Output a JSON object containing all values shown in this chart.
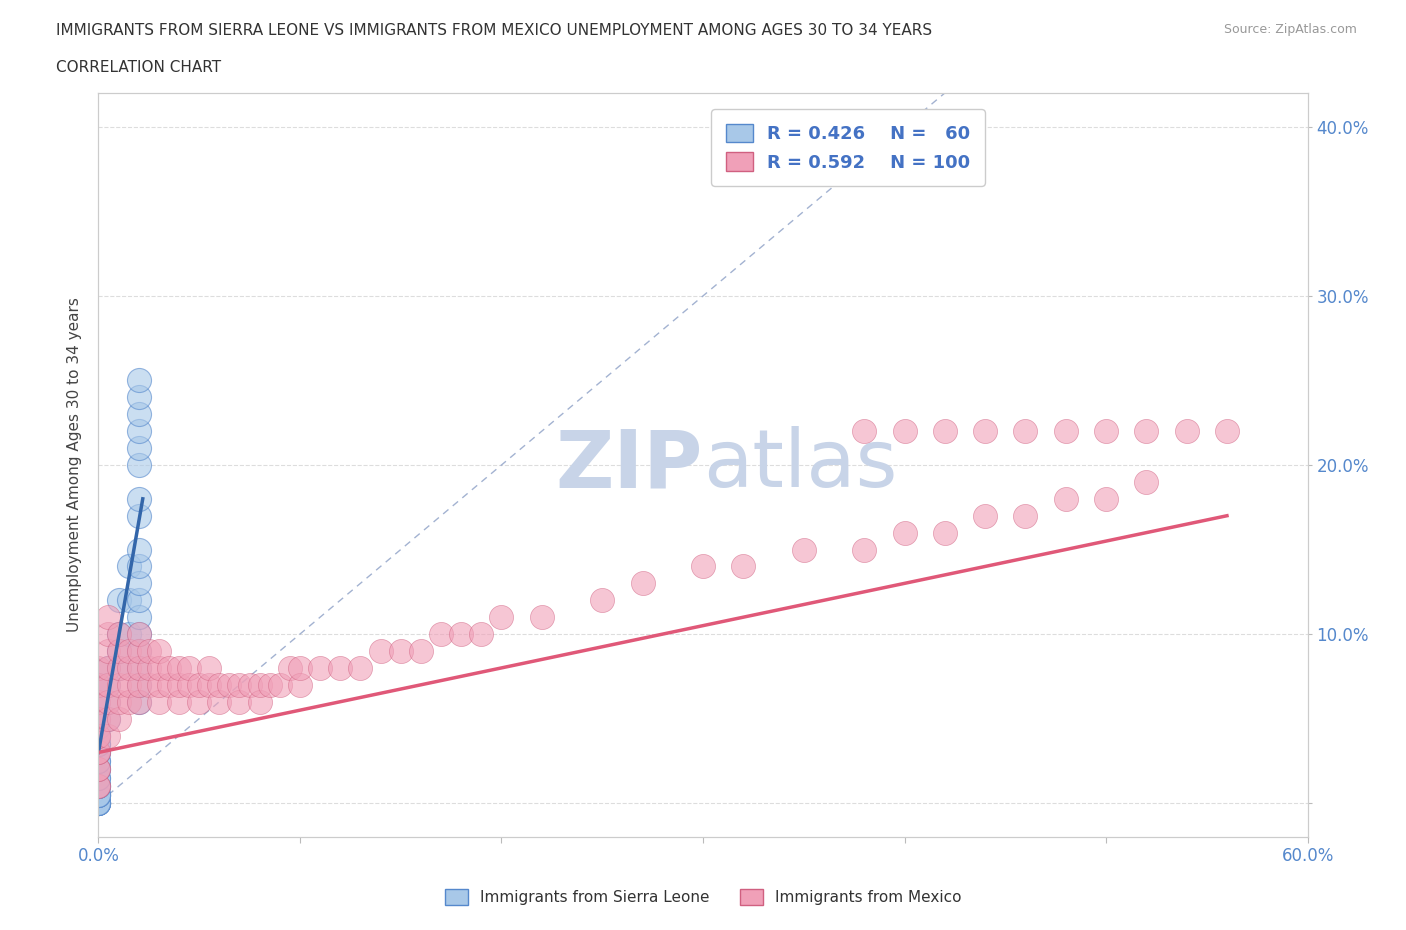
{
  "title_line1": "IMMIGRANTS FROM SIERRA LEONE VS IMMIGRANTS FROM MEXICO UNEMPLOYMENT AMONG AGES 30 TO 34 YEARS",
  "title_line2": "CORRELATION CHART",
  "source_text": "Source: ZipAtlas.com",
  "ylabel": "Unemployment Among Ages 30 to 34 years",
  "xlim": [
    0.0,
    0.6
  ],
  "ylim": [
    -0.02,
    0.42
  ],
  "color_blue": "#A8C8E8",
  "color_blue_edge": "#5588CC",
  "color_blue_line": "#3366AA",
  "color_pink": "#F0A0B8",
  "color_pink_edge": "#D06080",
  "color_pink_line": "#E05878",
  "color_diagonal": "#99AACC",
  "watermark_color": "#C8D4E8",
  "sl_x": [
    0.0,
    0.0,
    0.0,
    0.0,
    0.0,
    0.0,
    0.0,
    0.0,
    0.0,
    0.0,
    0.0,
    0.0,
    0.0,
    0.0,
    0.0,
    0.0,
    0.0,
    0.0,
    0.0,
    0.0,
    0.0,
    0.0,
    0.0,
    0.0,
    0.0,
    0.0,
    0.0,
    0.0,
    0.0,
    0.0,
    0.0,
    0.005,
    0.005,
    0.005,
    0.005,
    0.01,
    0.01,
    0.01,
    0.01,
    0.015,
    0.015,
    0.015,
    0.02,
    0.02,
    0.02,
    0.02,
    0.02,
    0.02,
    0.02,
    0.02,
    0.02,
    0.02,
    0.02,
    0.02,
    0.02,
    0.02,
    0.02,
    0.02,
    0.02,
    0.02
  ],
  "sl_y": [
    0.0,
    0.0,
    0.0,
    0.0,
    0.0,
    0.0,
    0.005,
    0.005,
    0.005,
    0.005,
    0.01,
    0.01,
    0.01,
    0.015,
    0.015,
    0.02,
    0.02,
    0.025,
    0.025,
    0.03,
    0.03,
    0.035,
    0.035,
    0.04,
    0.04,
    0.045,
    0.05,
    0.05,
    0.06,
    0.07,
    0.07,
    0.05,
    0.06,
    0.07,
    0.08,
    0.08,
    0.09,
    0.1,
    0.12,
    0.1,
    0.12,
    0.14,
    0.06,
    0.07,
    0.08,
    0.09,
    0.1,
    0.11,
    0.12,
    0.13,
    0.14,
    0.15,
    0.17,
    0.18,
    0.2,
    0.21,
    0.22,
    0.23,
    0.24,
    0.25
  ],
  "mx_x": [
    0.0,
    0.0,
    0.0,
    0.0,
    0.0,
    0.0,
    0.0,
    0.0,
    0.0,
    0.0,
    0.0,
    0.0,
    0.005,
    0.005,
    0.005,
    0.005,
    0.005,
    0.005,
    0.005,
    0.005,
    0.01,
    0.01,
    0.01,
    0.01,
    0.01,
    0.01,
    0.015,
    0.015,
    0.015,
    0.015,
    0.02,
    0.02,
    0.02,
    0.02,
    0.02,
    0.025,
    0.025,
    0.025,
    0.03,
    0.03,
    0.03,
    0.03,
    0.035,
    0.035,
    0.04,
    0.04,
    0.04,
    0.045,
    0.045,
    0.05,
    0.05,
    0.055,
    0.055,
    0.06,
    0.06,
    0.065,
    0.07,
    0.07,
    0.075,
    0.08,
    0.08,
    0.085,
    0.09,
    0.095,
    0.1,
    0.1,
    0.11,
    0.12,
    0.13,
    0.14,
    0.15,
    0.16,
    0.17,
    0.18,
    0.19,
    0.2,
    0.22,
    0.25,
    0.27,
    0.3,
    0.32,
    0.35,
    0.38,
    0.4,
    0.42,
    0.44,
    0.46,
    0.48,
    0.5,
    0.52,
    0.38,
    0.4,
    0.42,
    0.44,
    0.46,
    0.48,
    0.5,
    0.52,
    0.54,
    0.56
  ],
  "mx_y": [
    0.01,
    0.01,
    0.02,
    0.02,
    0.03,
    0.03,
    0.04,
    0.04,
    0.05,
    0.06,
    0.07,
    0.08,
    0.04,
    0.05,
    0.06,
    0.07,
    0.08,
    0.09,
    0.1,
    0.11,
    0.05,
    0.06,
    0.07,
    0.08,
    0.09,
    0.1,
    0.06,
    0.07,
    0.08,
    0.09,
    0.06,
    0.07,
    0.08,
    0.09,
    0.1,
    0.07,
    0.08,
    0.09,
    0.06,
    0.07,
    0.08,
    0.09,
    0.07,
    0.08,
    0.06,
    0.07,
    0.08,
    0.07,
    0.08,
    0.06,
    0.07,
    0.07,
    0.08,
    0.06,
    0.07,
    0.07,
    0.06,
    0.07,
    0.07,
    0.06,
    0.07,
    0.07,
    0.07,
    0.08,
    0.07,
    0.08,
    0.08,
    0.08,
    0.08,
    0.09,
    0.09,
    0.09,
    0.1,
    0.1,
    0.1,
    0.11,
    0.11,
    0.12,
    0.13,
    0.14,
    0.14,
    0.15,
    0.15,
    0.16,
    0.16,
    0.17,
    0.17,
    0.18,
    0.18,
    0.19,
    0.22,
    0.22,
    0.22,
    0.22,
    0.22,
    0.22,
    0.22,
    0.22,
    0.22,
    0.22
  ],
  "sl_line_x": [
    0.0,
    0.02
  ],
  "sl_line_y": [
    0.03,
    0.18
  ],
  "mx_line_x": [
    0.0,
    0.56
  ],
  "mx_line_y": [
    0.03,
    0.17
  ]
}
